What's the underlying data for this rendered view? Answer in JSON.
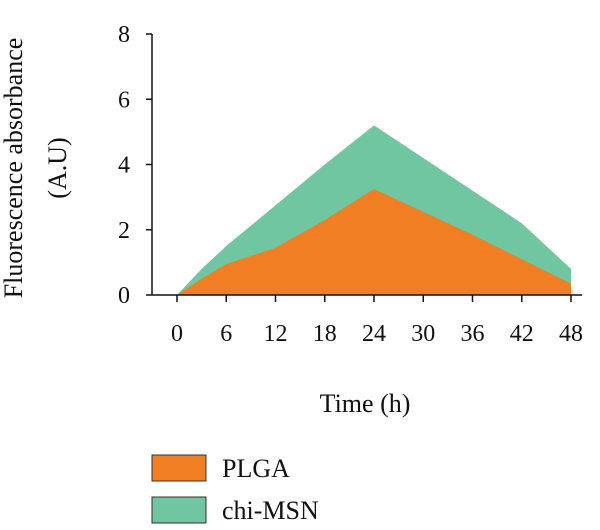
{
  "chart_data": {
    "type": "area",
    "x": [
      0,
      3,
      6,
      12,
      18,
      24,
      30,
      36,
      42,
      48
    ],
    "series": [
      {
        "name": "chi-MSN",
        "color": "#6fc6a0",
        "values": [
          0,
          0.8,
          1.5,
          2.75,
          4.0,
          5.2,
          4.2,
          3.2,
          2.2,
          0.8
        ]
      },
      {
        "name": "PLGA",
        "color": "#f27e24",
        "values": [
          0,
          0.5,
          0.95,
          1.45,
          2.3,
          3.25,
          2.55,
          1.85,
          1.1,
          0.35
        ]
      }
    ],
    "xticks": [
      "0",
      "6",
      "12",
      "18",
      "24",
      "30",
      "36",
      "42",
      "48"
    ],
    "yticks": [
      "0",
      "2",
      "4",
      "6",
      "8"
    ],
    "xlim": [
      0,
      48
    ],
    "ylim": [
      0,
      8
    ],
    "xlabel": "Time (h)",
    "ylabel_line1": "Fluorescence absorbance",
    "ylabel_line2": "(A.U)",
    "legend": [
      {
        "label": "PLGA",
        "color": "#f27e24"
      },
      {
        "label": "chi-MSN",
        "color": "#6fc6a0"
      }
    ],
    "legend_position": "bottom-center",
    "grid": false
  }
}
